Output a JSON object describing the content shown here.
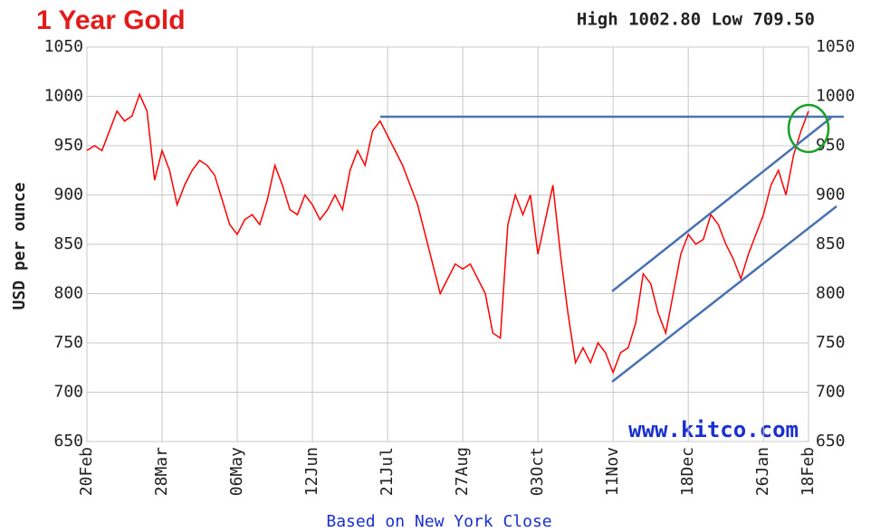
{
  "chart_data": {
    "type": "line",
    "title": "1 Year Gold",
    "subtitle": "High 1002.80 Low 709.50",
    "y_label": "USD per ounce",
    "x_label": "Based on New York Close",
    "annotation": "www.kitco.com",
    "categories": [
      "20Feb",
      null,
      null,
      null,
      null,
      null,
      null,
      null,
      null,
      null,
      "28Mar",
      null,
      null,
      null,
      null,
      null,
      null,
      null,
      null,
      null,
      "06May",
      null,
      null,
      null,
      null,
      null,
      null,
      null,
      null,
      null,
      "12Jun",
      null,
      null,
      null,
      null,
      null,
      null,
      null,
      null,
      null,
      "21Jul",
      null,
      null,
      null,
      null,
      null,
      null,
      null,
      null,
      null,
      "27Aug",
      null,
      null,
      null,
      null,
      null,
      null,
      null,
      null,
      null,
      "03Oct",
      null,
      null,
      null,
      null,
      null,
      null,
      null,
      null,
      null,
      "11Nov",
      null,
      null,
      null,
      null,
      null,
      null,
      null,
      null,
      null,
      "18Dec",
      null,
      null,
      null,
      null,
      null,
      null,
      null,
      null,
      null,
      "26Jan",
      null,
      null,
      null,
      null,
      null,
      "18Feb"
    ],
    "values": [
      945,
      950,
      945,
      965,
      985,
      975,
      980,
      1002,
      985,
      915,
      945,
      925,
      890,
      910,
      925,
      935,
      930,
      920,
      895,
      870,
      860,
      875,
      880,
      870,
      895,
      930,
      910,
      885,
      880,
      900,
      890,
      875,
      885,
      900,
      885,
      925,
      945,
      930,
      965,
      975,
      960,
      945,
      930,
      910,
      890,
      860,
      830,
      800,
      815,
      830,
      825,
      830,
      815,
      800,
      760,
      755,
      870,
      900,
      880,
      900,
      840,
      875,
      910,
      840,
      780,
      730,
      745,
      730,
      750,
      740,
      720,
      740,
      745,
      770,
      820,
      810,
      780,
      760,
      800,
      840,
      860,
      850,
      855,
      880,
      870,
      850,
      835,
      815,
      840,
      860,
      880,
      910,
      925,
      900,
      940,
      965,
      985
    ],
    "color": "#ff0000",
    "ylim": [
      650,
      1050
    ],
    "yticks": [
      650,
      700,
      750,
      800,
      850,
      900,
      950,
      1000,
      1050
    ],
    "grid": true
  }
}
